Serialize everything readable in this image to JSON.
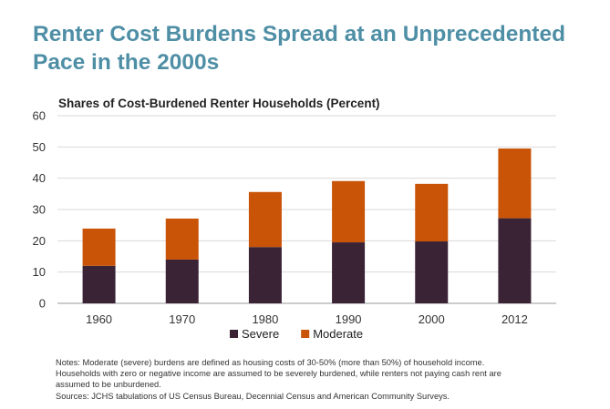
{
  "title": "Renter Cost Burdens Spread at an Unprecedented Pace in the 2000s",
  "chart_data": {
    "type": "bar",
    "stacked": true,
    "title": "Shares of Cost-Burdened Renter Households (Percent)",
    "categories": [
      "1960",
      "1970",
      "1980",
      "1990",
      "2000",
      "2012"
    ],
    "series": [
      {
        "name": "Severe",
        "values": [
          12,
          14,
          18,
          19.5,
          19.8,
          27.2
        ],
        "color": "#3b2336"
      },
      {
        "name": "Moderate",
        "values": [
          11.9,
          13.1,
          17.6,
          19.6,
          18.4,
          22.3
        ],
        "color": "#c95307"
      }
    ],
    "ylim": [
      0,
      60
    ],
    "yticks": [
      "0",
      "10",
      "20",
      "30",
      "40",
      "50",
      "60"
    ],
    "grid": true,
    "legend_position": "bottom"
  },
  "notes": [
    "Notes: Moderate (severe) burdens are defined as housing costs of 30-50% (more than 50%) of household income.",
    "Households with zero or negative income are assumed to be severely burdened, while renters not paying cash rent are",
    "assumed to be unburdened.",
    "Sources: JCHS tabulations of US Census Bureau, Decennial Census and American Community Surveys."
  ]
}
